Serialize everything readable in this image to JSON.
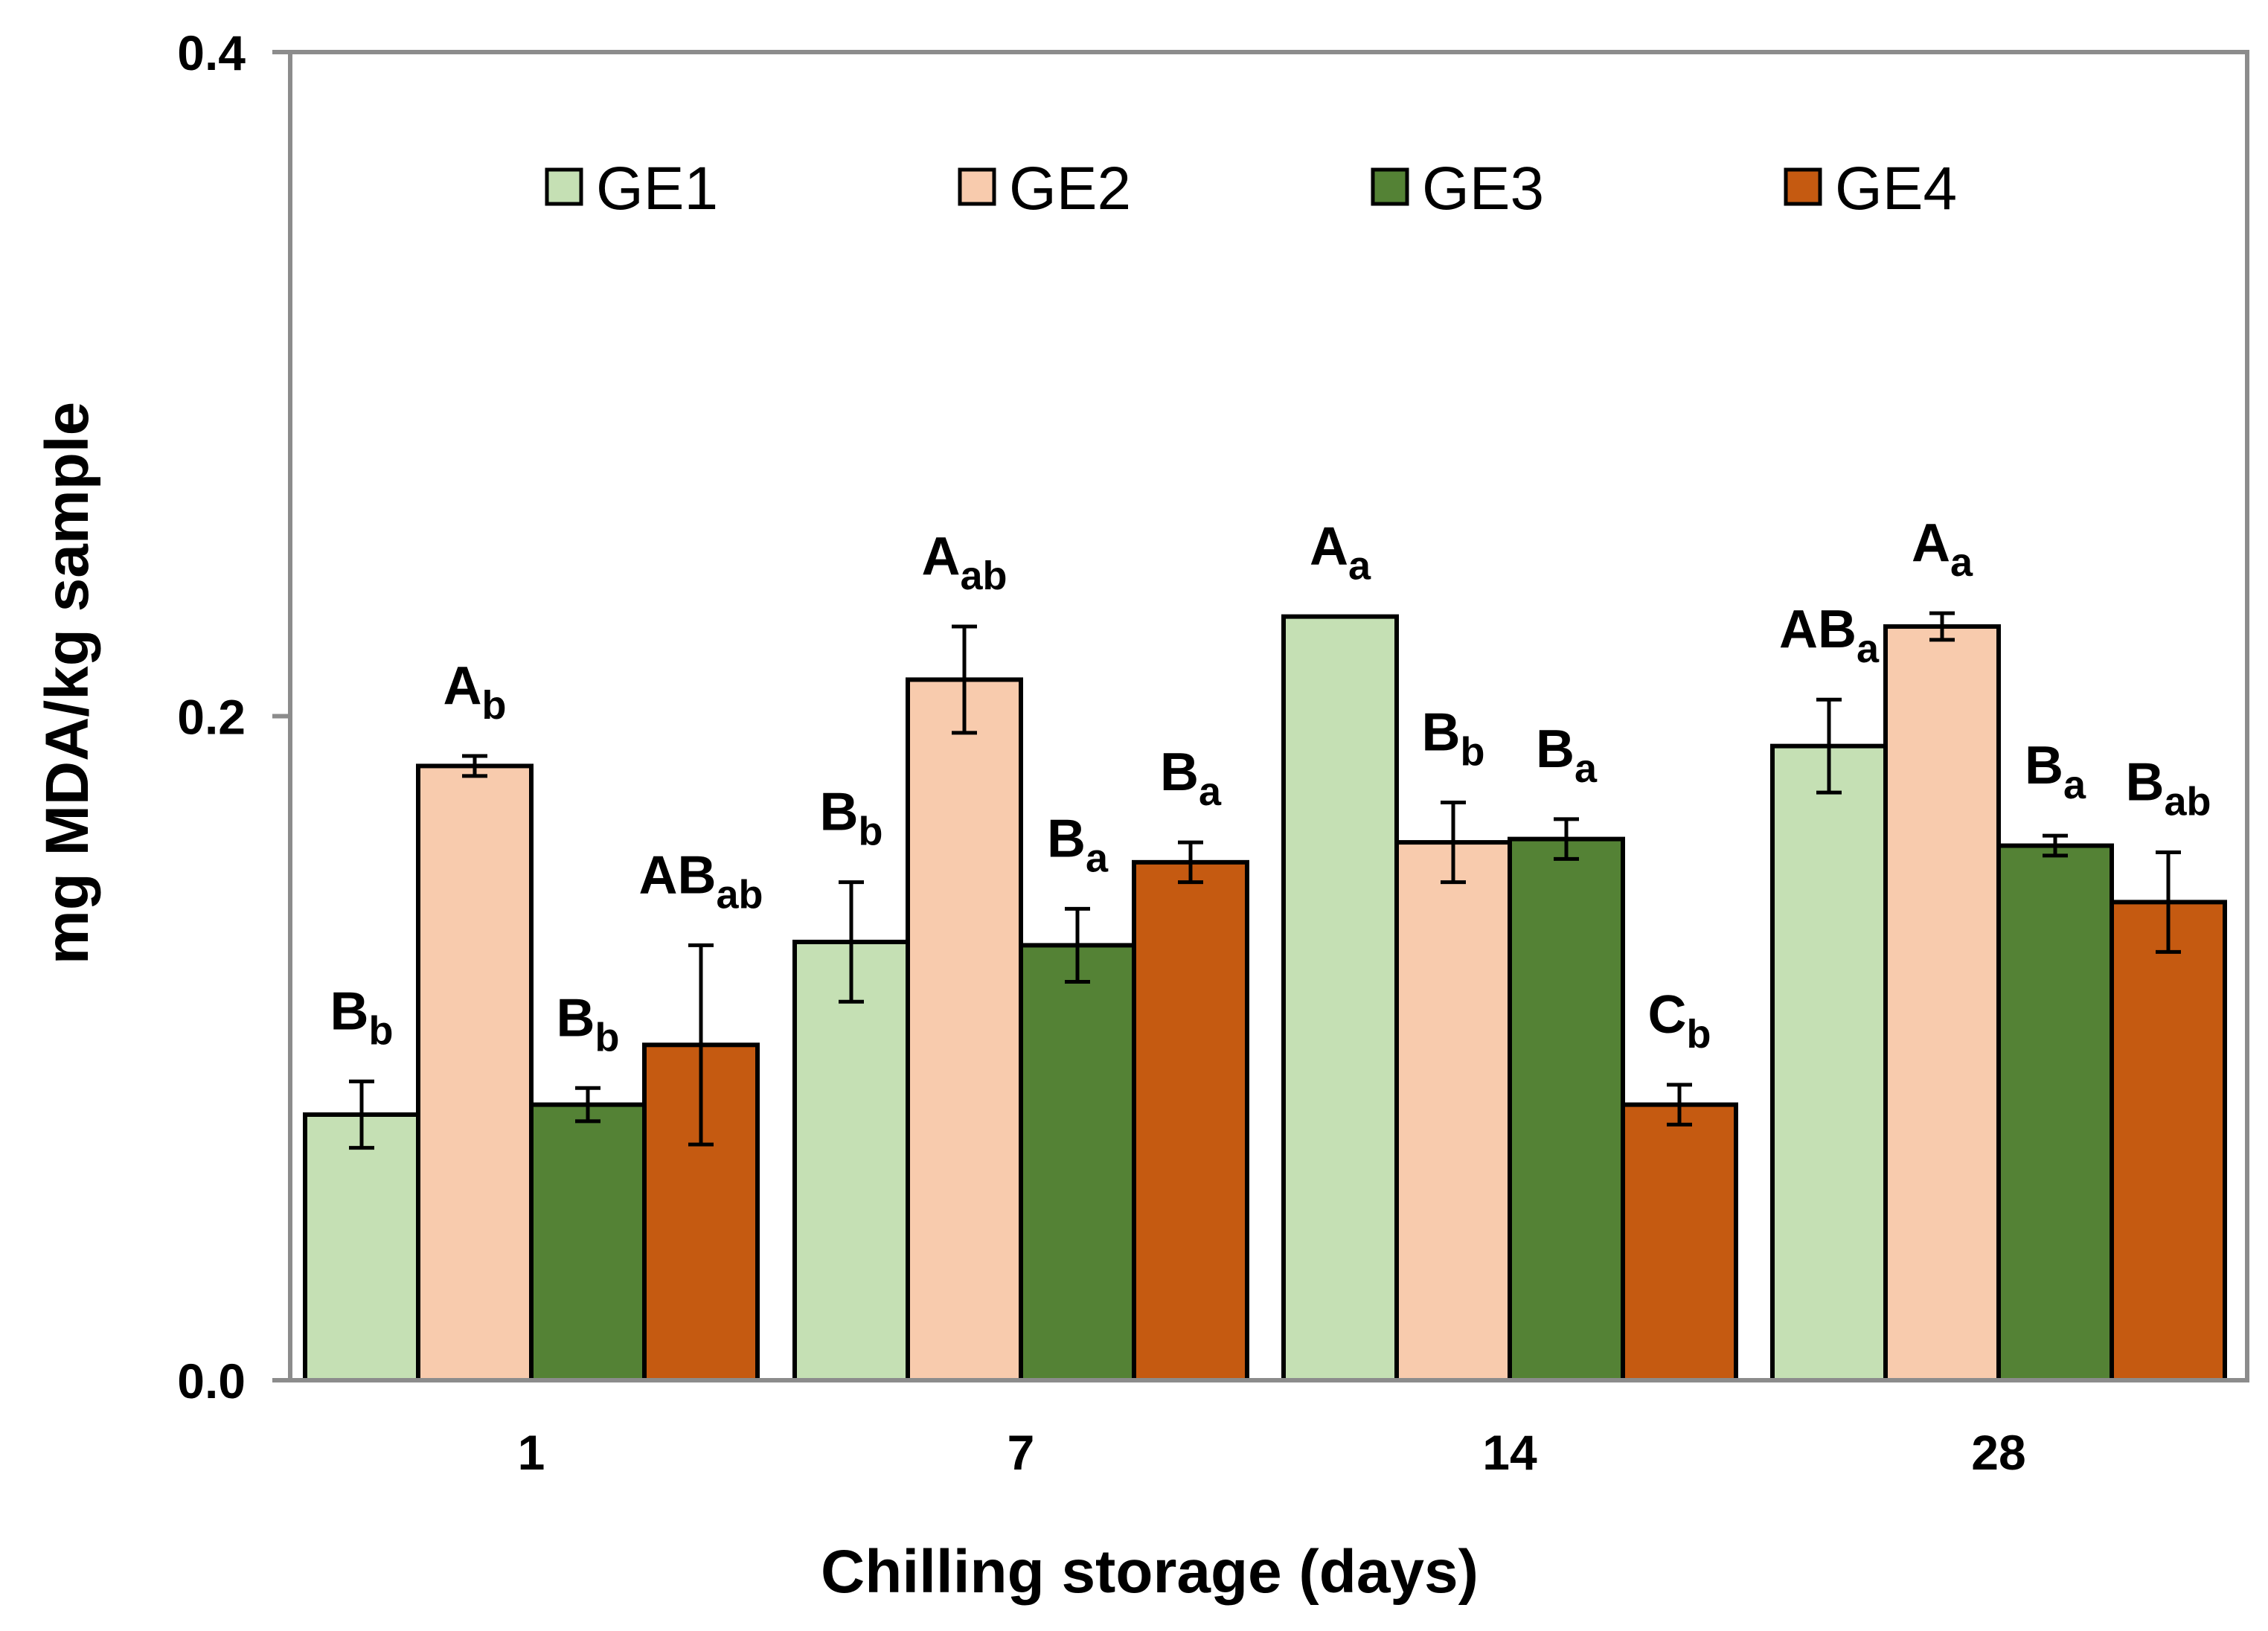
{
  "chart_data": {
    "type": "bar",
    "title": "",
    "xlabel": "Chilling storage (days)",
    "ylabel": "mg MDA/kg sample",
    "ylim": [
      0,
      0.4
    ],
    "yticks": [
      0,
      0.2,
      0.4
    ],
    "ytick_labels": [
      "0.0",
      "0.2",
      "0.4"
    ],
    "categories": [
      "1",
      "7",
      "14",
      "28"
    ],
    "legend_position": "top",
    "series": [
      {
        "name": "GE1",
        "color": "#c5e0b4",
        "values": [
          0.08,
          0.132,
          0.23,
          0.191
        ],
        "errors": [
          0.01,
          0.018,
          0.0,
          0.014
        ],
        "letters": [
          [
            "B",
            "b"
          ],
          [
            "B",
            "b"
          ],
          [
            "A",
            "a"
          ],
          [
            "AB",
            "a"
          ]
        ]
      },
      {
        "name": "GE2",
        "color": "#f8cbad",
        "values": [
          0.185,
          0.211,
          0.162,
          0.227
        ],
        "errors": [
          0.003,
          0.016,
          0.012,
          0.004
        ],
        "letters": [
          [
            "A",
            "b"
          ],
          [
            "A",
            "ab"
          ],
          [
            "B",
            "b"
          ],
          [
            "A",
            "a"
          ]
        ]
      },
      {
        "name": "GE3",
        "color": "#548235",
        "values": [
          0.083,
          0.131,
          0.163,
          0.161
        ],
        "errors": [
          0.005,
          0.011,
          0.006,
          0.003
        ],
        "letters": [
          [
            "B",
            "b"
          ],
          [
            "B",
            "a"
          ],
          [
            "B",
            "a"
          ],
          [
            "B",
            "a"
          ]
        ]
      },
      {
        "name": "GE4",
        "color": "#c55a11",
        "values": [
          0.101,
          0.156,
          0.083,
          0.144
        ],
        "errors": [
          0.03,
          0.006,
          0.006,
          0.015
        ],
        "letters": [
          [
            "AB",
            "ab"
          ],
          [
            "B",
            "a"
          ],
          [
            "C",
            "b"
          ],
          [
            "B",
            "ab"
          ]
        ]
      }
    ]
  }
}
